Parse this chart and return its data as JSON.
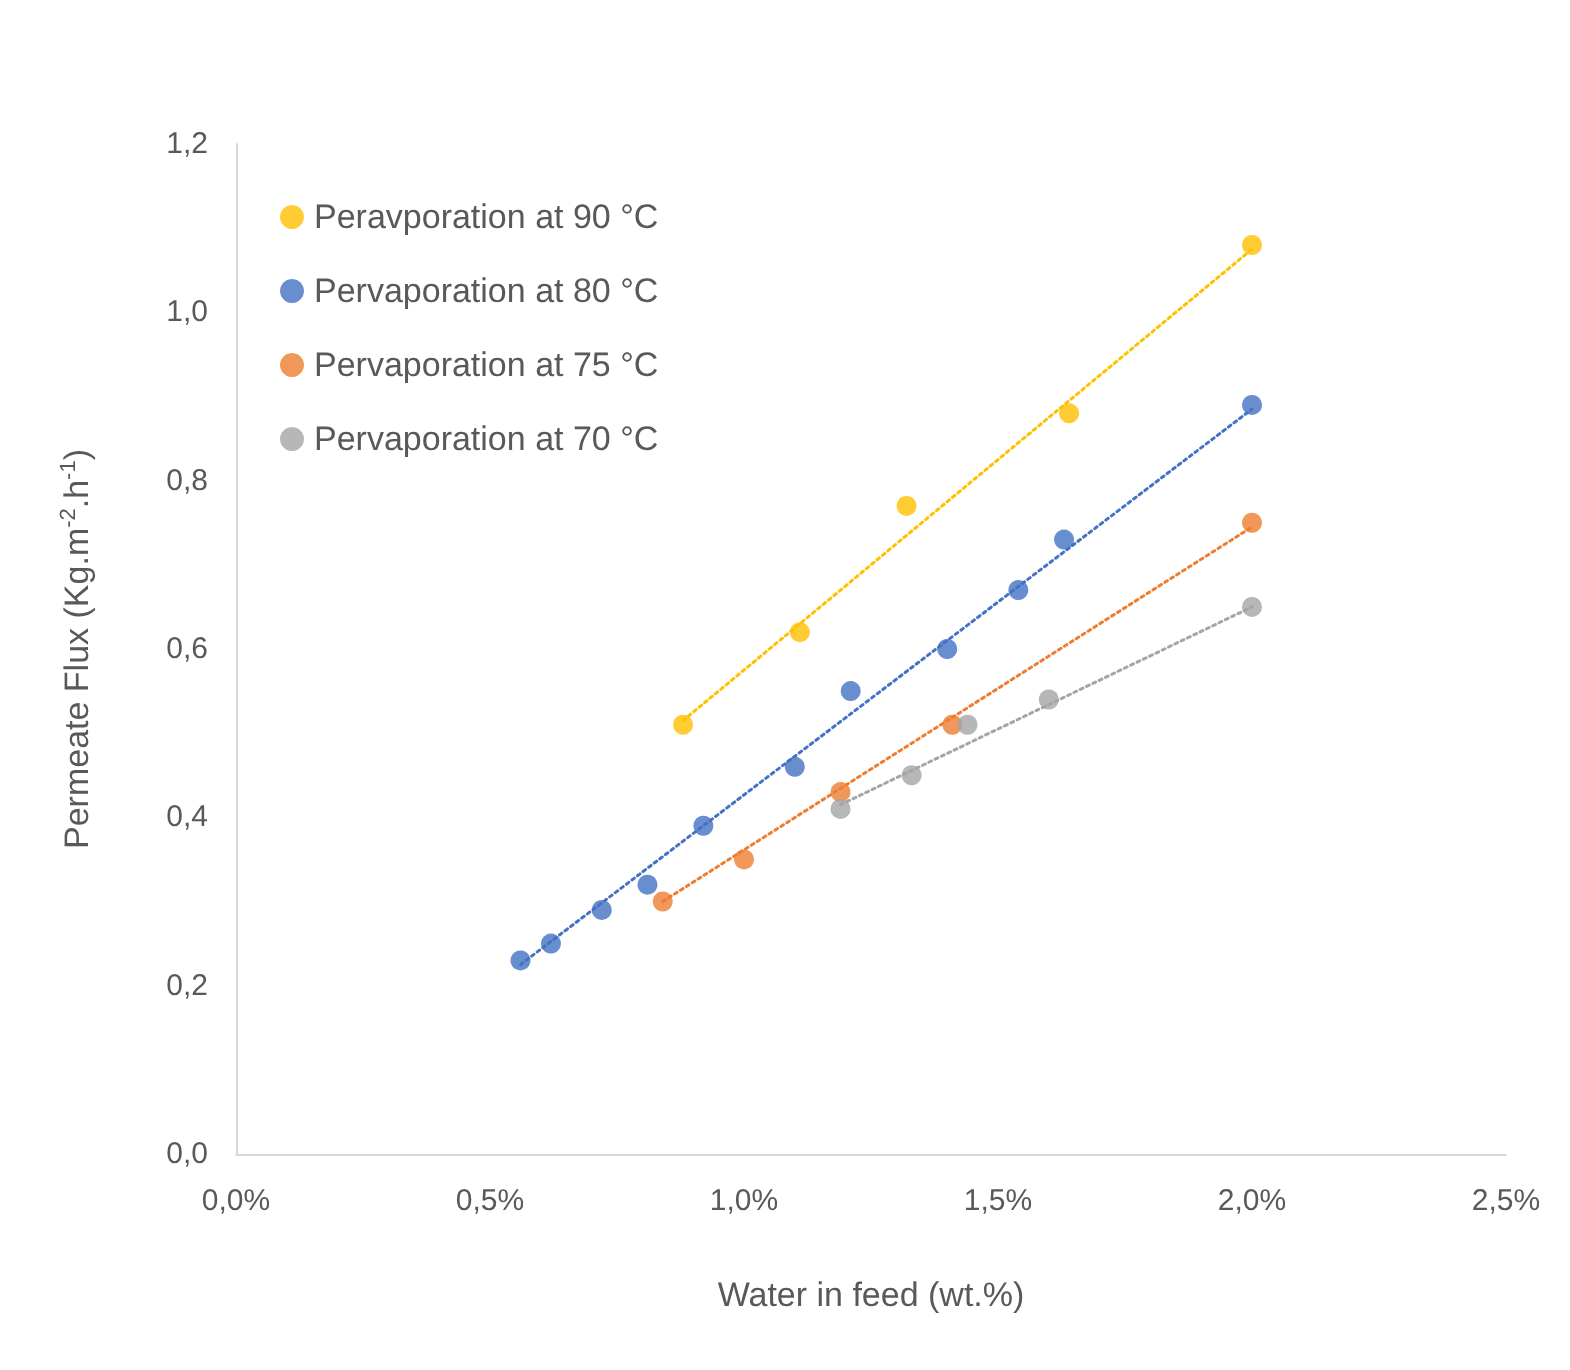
{
  "chart_data": {
    "type": "scatter",
    "xlabel": "Water in feed (wt.%)",
    "ylabel": "Permeate Flux (Kg.m$^{-2}$.h$^{-1}$)",
    "xlim": [
      0,
      2.5
    ],
    "xticks": [
      {
        "value": 0,
        "label": "0,0%"
      },
      {
        "value": 0.5,
        "label": "0,5%"
      },
      {
        "value": 1,
        "label": "1,0%"
      },
      {
        "value": 1.5,
        "label": "1,5%"
      },
      {
        "value": 2,
        "label": "2,0%"
      },
      {
        "value": 2.5,
        "label": "2,5%"
      }
    ],
    "ylim": [
      0,
      1.2
    ],
    "yticks": [
      {
        "value": 0,
        "label": "0,0"
      },
      {
        "value": 0.2,
        "label": "0,2"
      },
      {
        "value": 0.4,
        "label": "0,4"
      },
      {
        "value": 0.6,
        "label": "0,6"
      },
      {
        "value": 0.8,
        "label": "0,8"
      },
      {
        "value": 1,
        "label": "1,0"
      },
      {
        "value": 1.2,
        "label": "1,2"
      }
    ],
    "grid": false,
    "legend": "top left",
    "marker": "circle",
    "series": [
      {
        "name": "Peravporation at 90 °C",
        "color": "#ffc000",
        "x": [
          0.88,
          1.11,
          1.32,
          1.64,
          2.0
        ],
        "values": [
          0.51,
          0.62,
          0.77,
          0.88,
          1.08
        ]
      },
      {
        "name": "Pervaporation at 80 °C",
        "color": "#4472c4",
        "x": [
          0.56,
          0.62,
          0.72,
          0.81,
          0.92,
          1.1,
          1.21,
          1.4,
          1.54,
          1.63,
          2.0
        ],
        "values": [
          0.23,
          0.25,
          0.29,
          0.32,
          0.39,
          0.46,
          0.55,
          0.6,
          0.67,
          0.73,
          0.89
        ]
      },
      {
        "name": "Pervaporation at 75 °C",
        "color": "#ed7d31",
        "x": [
          0.84,
          1.0,
          1.19,
          1.41,
          2.0
        ],
        "values": [
          0.3,
          0.35,
          0.43,
          0.51,
          0.75
        ]
      },
      {
        "name": "Pervaporation at 70 °C",
        "color": "#a5a5a5",
        "x": [
          1.19,
          1.33,
          1.44,
          1.6,
          2.0
        ],
        "values": [
          0.41,
          0.45,
          0.51,
          0.54,
          0.65
        ]
      },
      {
        "type": "line",
        "color": "#ffc000",
        "line_style": "dotted",
        "marker": "none",
        "x": [
          0.88,
          2.0
        ],
        "values": [
          0.515,
          1.075
        ]
      },
      {
        "type": "line",
        "color": "#4472c4",
        "line_style": "dotted",
        "marker": "none",
        "x": [
          0.56,
          2.0
        ],
        "values": [
          0.225,
          0.885
        ]
      },
      {
        "type": "line",
        "color": "#ed7d31",
        "line_style": "dotted",
        "marker": "none",
        "x": [
          0.84,
          2.0
        ],
        "values": [
          0.3,
          0.745
        ]
      },
      {
        "type": "line",
        "color": "#a5a5a5",
        "line_style": "dotted",
        "marker": "none",
        "x": [
          1.19,
          2.0
        ],
        "values": [
          0.415,
          0.65
        ]
      }
    ]
  }
}
